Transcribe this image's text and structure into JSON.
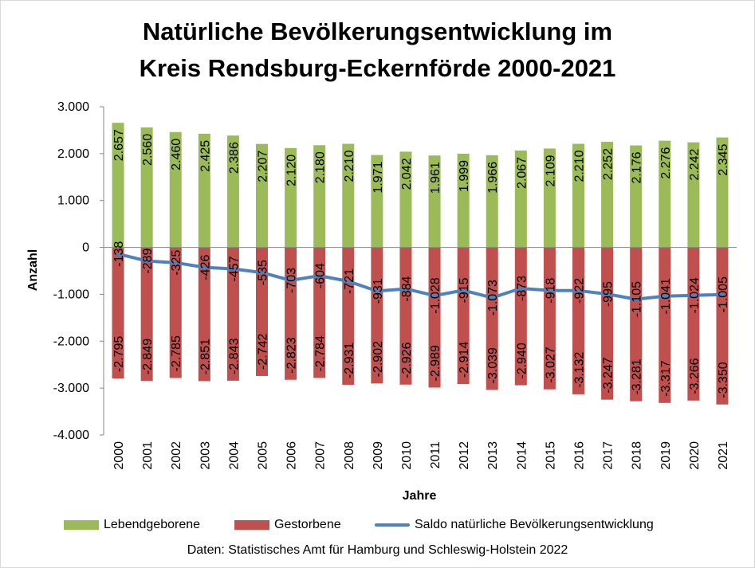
{
  "chart_data": {
    "type": "bar",
    "title_line1": "Natürliche Bevölkerungsentwicklung im",
    "title_line2": "Kreis Rendsburg-Eckernförde 2000-2021",
    "xlabel": "Jahre",
    "ylabel": "Anzahl",
    "ylim": [
      -4000,
      3000
    ],
    "yticks": [
      3000,
      2000,
      1000,
      0,
      -1000,
      -2000,
      -3000,
      -4000
    ],
    "ytick_labels": [
      "3.000",
      "2.000",
      "1.000",
      "0",
      "-1.000",
      "-2.000",
      "-3.000",
      "-4.000"
    ],
    "stacked": true,
    "categories": [
      "2000",
      "2001",
      "2002",
      "2003",
      "2004",
      "2005",
      "2006",
      "2007",
      "2008",
      "2009",
      "2010",
      "2011",
      "2012",
      "2013",
      "2014",
      "2015",
      "2016",
      "2017",
      "2018",
      "2019",
      "2020",
      "2021"
    ],
    "series": [
      {
        "name": "Lebendgeborene",
        "type": "bar",
        "color": "#9bbb59",
        "values": [
          2657,
          2560,
          2460,
          2425,
          2386,
          2207,
          2120,
          2180,
          2210,
          1971,
          2042,
          1961,
          1999,
          1966,
          2067,
          2109,
          2210,
          2252,
          2176,
          2276,
          2242,
          2345
        ],
        "labels": [
          "2.657",
          "2.560",
          "2.460",
          "2.425",
          "2.386",
          "2.207",
          "2.120",
          "2.180",
          "2.210",
          "1.971",
          "2.042",
          "1.961",
          "1.999",
          "1.966",
          "2.067",
          "2.109",
          "2.210",
          "2.252",
          "2.176",
          "2.276",
          "2.242",
          "2.345"
        ]
      },
      {
        "name": "Gestorbene",
        "type": "bar",
        "color": "#c0504d",
        "values": [
          -2795,
          -2849,
          -2785,
          -2851,
          -2843,
          -2742,
          -2823,
          -2784,
          -2931,
          -2902,
          -2926,
          -2989,
          -2914,
          -3039,
          -2940,
          -3027,
          -3132,
          -3247,
          -3281,
          -3317,
          -3266,
          -3350
        ],
        "labels": [
          "-2.795",
          "-2.849",
          "-2.785",
          "-2.851",
          "-2.843",
          "-2.742",
          "-2.823",
          "-2.784",
          "-2.931",
          "-2.902",
          "-2.926",
          "-2.989",
          "-2.914",
          "-3.039",
          "-2.940",
          "-3.027",
          "-3.132",
          "-3.247",
          "-3.281",
          "-3.317",
          "-3.266",
          "-3.350"
        ]
      },
      {
        "name": "Saldo natürliche Bevölkerungsentwicklung",
        "type": "line",
        "color": "#4f81bd",
        "values": [
          -138,
          -289,
          -325,
          -426,
          -457,
          -535,
          -703,
          -604,
          -721,
          -931,
          -884,
          -1028,
          -915,
          -1073,
          -873,
          -918,
          -922,
          -995,
          -1105,
          -1041,
          -1024,
          -1005
        ],
        "labels": [
          "-138",
          "-289",
          "-325",
          "-426",
          "-457",
          "-535",
          "-703",
          "-604",
          "-721",
          "-931",
          "-884",
          "-1.028",
          "-915",
          "-1.073",
          "-873",
          "-918",
          "-922",
          "-995",
          "-1.105",
          "-1.041",
          "-1.024",
          "-1.005"
        ]
      }
    ],
    "grid": false,
    "legend_position": "bottom",
    "source": "Daten: Statistisches Amt für Hamburg und Schleswig-Holstein 2022"
  }
}
